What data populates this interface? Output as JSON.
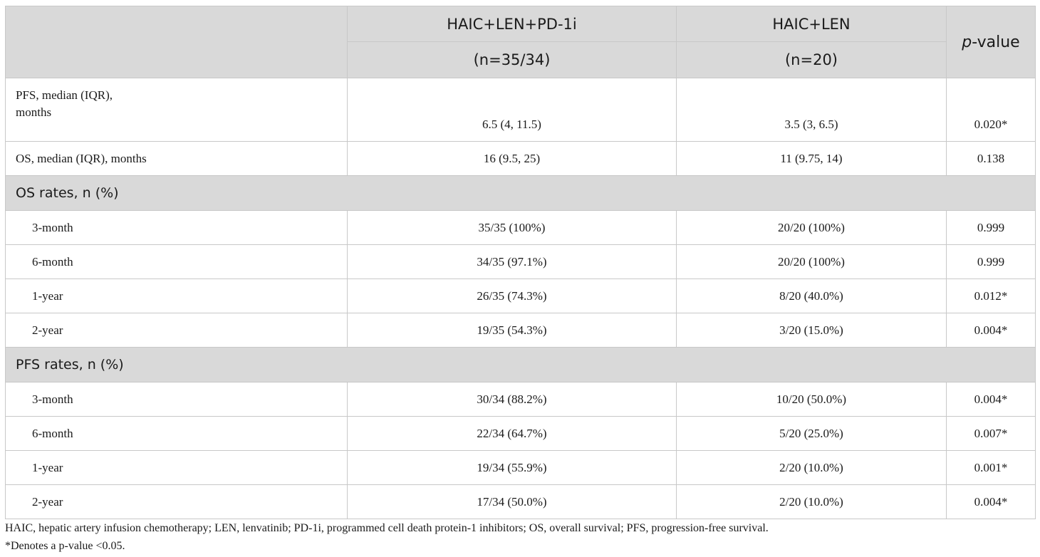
{
  "header": {
    "col1_line1": "HAIC+LEN+PD-1i",
    "col1_line2": "(n=35/34)",
    "col2_line1": "HAIC+LEN",
    "col2_line2": "(n=20)",
    "pvalue_italic": "p",
    "pvalue_rest": "-value"
  },
  "rows_top": [
    {
      "label_line1": "PFS, median (IQR),",
      "label_line2": "months",
      "a": "6.5 (4, 11.5)",
      "b": "3.5 (3, 6.5)",
      "p": "0.020*"
    },
    {
      "label": "OS, median (IQR), months",
      "a": "16 (9.5, 25)",
      "b": "11 (9.75, 14)",
      "p": "0.138"
    }
  ],
  "os_section": {
    "title": "OS rates, n (%)",
    "rows": [
      {
        "label": "3-month",
        "a": "35/35 (100%)",
        "b": "20/20 (100%)",
        "p": "0.999"
      },
      {
        "label": "6-month",
        "a": "34/35 (97.1%)",
        "b": "20/20 (100%)",
        "p": "0.999"
      },
      {
        "label": "1-year",
        "a": "26/35 (74.3%)",
        "b": "8/20 (40.0%)",
        "p": "0.012*"
      },
      {
        "label": "2-year",
        "a": "19/35 (54.3%)",
        "b": "3/20 (15.0%)",
        "p": "0.004*"
      }
    ]
  },
  "pfs_section": {
    "title": "PFS rates, n (%)",
    "rows": [
      {
        "label": "3-month",
        "a": "30/34 (88.2%)",
        "b": "10/20 (50.0%)",
        "p": "0.004*"
      },
      {
        "label": "6-month",
        "a": "22/34 (64.7%)",
        "b": "5/20 (25.0%)",
        "p": "0.007*"
      },
      {
        "label": "1-year",
        "a": "19/34 (55.9%)",
        "b": "2/20 (10.0%)",
        "p": "0.001*"
      },
      {
        "label": "2-year",
        "a": "17/34 (50.0%)",
        "b": "2/20 (10.0%)",
        "p": "0.004*"
      }
    ]
  },
  "footnotes": {
    "abbreviations": "HAIC, hepatic artery infusion chemotherapy; LEN, lenvatinib; PD-1i, programmed cell death protein-1 inhibitors; OS, overall survival; PFS, progression-free survival.",
    "significance": "*Denotes a p-value <0.05."
  }
}
